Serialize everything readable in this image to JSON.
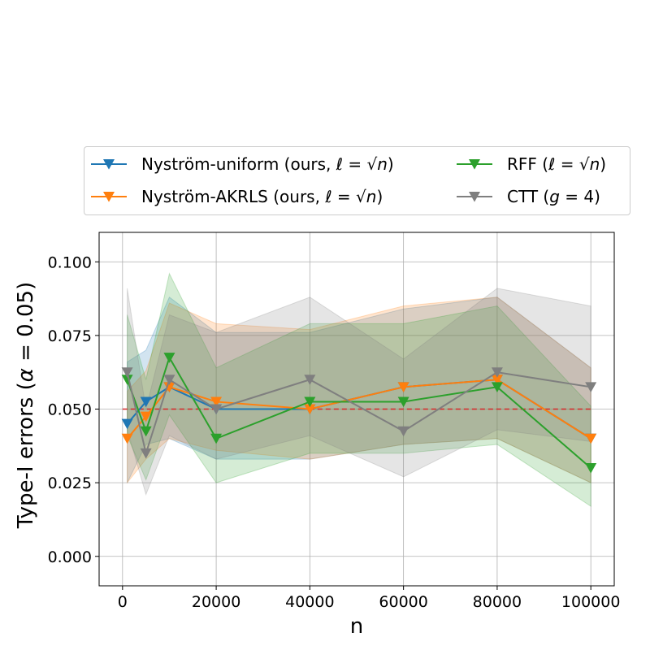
{
  "chart_data": {
    "type": "line",
    "xlabel": "n",
    "ylabel": "Type-I errors (α = 0.05)",
    "xlim": [
      -5000,
      105000
    ],
    "ylim": [
      -0.01,
      0.11
    ],
    "xticks": [
      0,
      20000,
      40000,
      60000,
      80000,
      100000
    ],
    "xtick_labels": [
      "0",
      "20000",
      "40000",
      "60000",
      "80000",
      "100000"
    ],
    "yticks": [
      0.0,
      0.025,
      0.05,
      0.075,
      0.1
    ],
    "ytick_labels": [
      "0.000",
      "0.025",
      "0.050",
      "0.075",
      "0.100"
    ],
    "grid": true,
    "legend_placement": "above plot, two columns",
    "reference_line": {
      "y": 0.05,
      "color": "#d62728",
      "style": "dashed"
    },
    "x": [
      1000,
      5000,
      10000,
      20000,
      40000,
      60000,
      80000,
      100000
    ],
    "series": [
      {
        "name": "Nyström-uniform (ours, ℓ = √n)",
        "color": "#1f77b4",
        "values": [
          0.045,
          0.0525,
          0.0575,
          0.05,
          0.05,
          0.0575,
          0.06,
          0.04
        ],
        "lower": [
          0.025,
          0.038,
          0.04,
          0.033,
          0.033,
          0.038,
          0.04,
          0.025
        ],
        "upper": [
          0.066,
          0.07,
          0.088,
          0.076,
          0.076,
          0.084,
          0.088,
          0.064
        ]
      },
      {
        "name": "Nyström-AKRLS (ours, ℓ = √n)",
        "color": "#ff7f0e",
        "values": [
          0.04,
          0.0475,
          0.0575,
          0.0525,
          0.05,
          0.0575,
          0.06,
          0.04
        ],
        "lower": [
          0.025,
          0.033,
          0.04,
          0.036,
          0.033,
          0.038,
          0.04,
          0.025
        ],
        "upper": [
          0.056,
          0.063,
          0.086,
          0.079,
          0.077,
          0.085,
          0.088,
          0.064
        ]
      },
      {
        "name": "RFF  (ℓ = √n)",
        "color": "#2ca02c",
        "values": [
          0.06,
          0.0425,
          0.0675,
          0.04,
          0.0525,
          0.0525,
          0.0575,
          0.03
        ],
        "lower": [
          0.041,
          0.026,
          0.048,
          0.025,
          0.035,
          0.035,
          0.038,
          0.017
        ],
        "upper": [
          0.082,
          0.06,
          0.096,
          0.064,
          0.079,
          0.079,
          0.085,
          0.051
        ]
      },
      {
        "name": "CTT  (g = 4)",
        "color": "#7f7f7f",
        "values": [
          0.0625,
          0.035,
          0.06,
          0.05,
          0.06,
          0.0425,
          0.0625,
          0.0575
        ],
        "lower": [
          0.043,
          0.021,
          0.041,
          0.033,
          0.041,
          0.027,
          0.043,
          0.039
        ],
        "upper": [
          0.091,
          0.05,
          0.082,
          0.076,
          0.088,
          0.067,
          0.091,
          0.085
        ]
      }
    ],
    "legend": [
      {
        "parts": [
          [
            "Nyström-uniform (ours, ",
            false
          ],
          [
            "ℓ",
            true
          ],
          [
            " = √",
            false
          ],
          [
            "n",
            true
          ],
          [
            ")",
            false
          ]
        ]
      },
      {
        "parts": [
          [
            "Nyström-AKRLS (ours, ",
            false
          ],
          [
            "ℓ",
            true
          ],
          [
            " = √",
            false
          ],
          [
            "n",
            true
          ],
          [
            ")",
            false
          ]
        ]
      },
      {
        "parts": [
          [
            "RFF  (",
            false
          ],
          [
            "ℓ",
            true
          ],
          [
            " = √",
            false
          ],
          [
            "n",
            true
          ],
          [
            ")",
            false
          ]
        ]
      },
      {
        "parts": [
          [
            "CTT  (",
            false
          ],
          [
            "g",
            true
          ],
          [
            " = 4)",
            false
          ]
        ]
      }
    ]
  }
}
